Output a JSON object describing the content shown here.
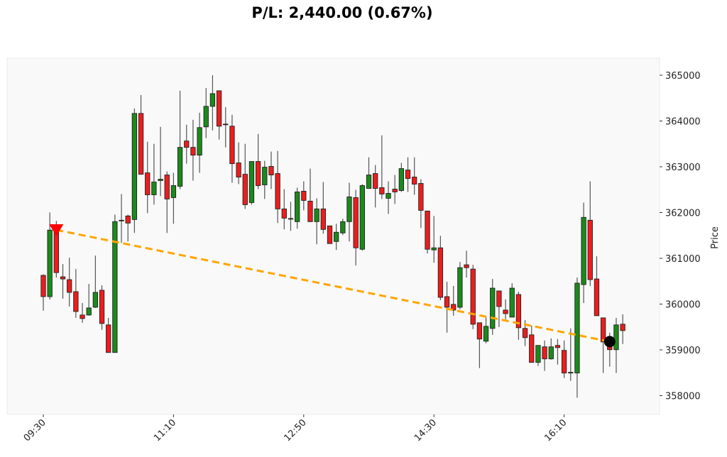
{
  "chart_data": {
    "type": "candlestick",
    "title": "P/L: 2,440.00 (0.67%)",
    "ylabel": "Price",
    "xlabel": "",
    "ylim": [
      357650,
      365400
    ],
    "y_axis_side": "right",
    "grid": false,
    "x_ticks": [
      "09:30",
      "11:10",
      "12:50",
      "14:30",
      "16:10"
    ],
    "y_ticks": [
      358000,
      359000,
      360000,
      361000,
      362000,
      363000,
      364000,
      365000
    ],
    "colors": {
      "up": "#1a8a1a",
      "down": "#ee1c1c",
      "background": "#f9f9f9",
      "trade_line": "#ffa500",
      "entry_marker": "#ff0000",
      "exit_marker": "#000000"
    },
    "candle_fields": [
      "time",
      "open",
      "high",
      "low",
      "close"
    ],
    "candles": [
      [
        "09:30",
        360627,
        360650,
        359854,
        360163
      ],
      [
        "09:35",
        360163,
        362002,
        360101,
        361616
      ],
      [
        "09:40",
        361647,
        361817,
        360580,
        360688
      ],
      [
        "09:45",
        360596,
        360874,
        360117,
        360549
      ],
      [
        "09:50",
        360534,
        361013,
        359947,
        360256
      ],
      [
        "09:55",
        360271,
        360766,
        359699,
        359838
      ],
      [
        "10:00",
        359761,
        360024,
        359591,
        359684
      ],
      [
        "10:05",
        359761,
        360441,
        359746,
        359916
      ],
      [
        "10:10",
        359931,
        361059,
        359916,
        360256
      ],
      [
        "10:15",
        360302,
        360410,
        359437,
        359576
      ],
      [
        "10:20",
        359545,
        359699,
        358942,
        358942
      ],
      [
        "10:25",
        358942,
        361956,
        358942,
        361801
      ],
      [
        "10:30",
        361832,
        362404,
        361337,
        361817
      ],
      [
        "10:35",
        361925,
        361956,
        361368,
        361770
      ],
      [
        "10:40",
        361847,
        364274,
        361554,
        364165
      ],
      [
        "10:45",
        364165,
        364567,
        362836,
        362836
      ],
      [
        "10:50",
        362867,
        363547,
        361987,
        362388
      ],
      [
        "10:55",
        362388,
        363501,
        362172,
        362666
      ],
      [
        "11:00",
        362698,
        363872,
        362357,
        362728
      ],
      [
        "11:05",
        362821,
        362898,
        361554,
        362296
      ],
      [
        "11:10",
        362327,
        362867,
        361755,
        362589
      ],
      [
        "11:15",
        362574,
        364660,
        362512,
        363424
      ],
      [
        "11:20",
        363563,
        363918,
        363068,
        363424
      ],
      [
        "11:25",
        363424,
        364026,
        362697,
        363254
      ],
      [
        "11:30",
        363254,
        364181,
        362867,
        363856
      ],
      [
        "11:35",
        363872,
        364722,
        363625,
        364320
      ],
      [
        "11:40",
        364320,
        365000,
        363795,
        364598
      ],
      [
        "11:45",
        364660,
        364660,
        363594,
        363887
      ],
      [
        "11:50",
        363933,
        364305,
        363424,
        363918
      ],
      [
        "11:55",
        363887,
        364135,
        362651,
        363068
      ],
      [
        "12:00",
        363084,
        363532,
        362620,
        362775
      ],
      [
        "12:05",
        362836,
        363501,
        362079,
        362172
      ],
      [
        "12:10",
        362218,
        363115,
        362172,
        363115
      ],
      [
        "12:15",
        363115,
        363717,
        362512,
        362589
      ],
      [
        "12:20",
        362605,
        363130,
        362296,
        362991
      ],
      [
        "12:25",
        363007,
        363331,
        362512,
        362821
      ],
      [
        "12:30",
        362852,
        363346,
        361770,
        362079
      ],
      [
        "12:35",
        362079,
        362512,
        361631,
        361878
      ],
      [
        "12:40",
        361870,
        362234,
        361600,
        361862
      ],
      [
        "12:45",
        361801,
        362543,
        361646,
        362450
      ],
      [
        "12:50",
        362466,
        362682,
        362048,
        362265
      ],
      [
        "12:55",
        362249,
        362960,
        361801,
        361801
      ],
      [
        "13:00",
        361801,
        362311,
        361306,
        362079
      ],
      [
        "13:05",
        362079,
        362667,
        361538,
        361631
      ],
      [
        "13:10",
        361708,
        361708,
        361322,
        361322
      ],
      [
        "13:15",
        361368,
        361755,
        361183,
        361569
      ],
      [
        "13:20",
        361554,
        361863,
        361508,
        361801
      ],
      [
        "13:25",
        361801,
        362651,
        361368,
        362342
      ],
      [
        "13:30",
        362326,
        362496,
        360843,
        361229
      ],
      [
        "13:35",
        361198,
        362620,
        361167,
        362589
      ],
      [
        "13:40",
        362527,
        363207,
        362527,
        362821
      ],
      [
        "13:45",
        362852,
        363037,
        362110,
        362527
      ],
      [
        "13:50",
        362543,
        363686,
        362296,
        362404
      ],
      [
        "13:55",
        362311,
        362682,
        361971,
        362419
      ],
      [
        "14:00",
        362512,
        362821,
        362187,
        362450
      ],
      [
        "14:05",
        362481,
        363084,
        362450,
        362960
      ],
      [
        "14:10",
        362929,
        363207,
        362450,
        362744
      ],
      [
        "14:15",
        362775,
        363207,
        362388,
        362620
      ],
      [
        "14:20",
        362636,
        362728,
        361662,
        362048
      ],
      [
        "14:25",
        362033,
        362033,
        361106,
        361198
      ],
      [
        "14:30",
        361183,
        361925,
        360905,
        361229
      ],
      [
        "14:35",
        361229,
        361492,
        360086,
        360147
      ],
      [
        "14:40",
        360163,
        360487,
        359375,
        359931
      ],
      [
        "14:45",
        359993,
        360395,
        359746,
        359869
      ],
      [
        "14:50",
        359931,
        360920,
        359885,
        360796
      ],
      [
        "14:55",
        360858,
        361167,
        360580,
        360796
      ],
      [
        "15:00",
        360765,
        360858,
        359452,
        359560
      ],
      [
        "15:05",
        359591,
        359591,
        358602,
        359236
      ],
      [
        "15:10",
        359189,
        359730,
        359143,
        359514
      ],
      [
        "15:15",
        359468,
        360549,
        359328,
        360348
      ],
      [
        "15:20",
        360287,
        360287,
        359498,
        359947
      ],
      [
        "15:25",
        359869,
        360101,
        359668,
        359792
      ],
      [
        "15:30",
        359715,
        360457,
        359715,
        360348
      ],
      [
        "15:35",
        360209,
        360271,
        359220,
        359483
      ],
      [
        "15:40",
        359468,
        359653,
        359081,
        359267
      ],
      [
        "15:45",
        359328,
        359529,
        358726,
        358726
      ],
      [
        "15:50",
        358726,
        359097,
        358648,
        359097
      ],
      [
        "15:55",
        359066,
        359205,
        358540,
        358803
      ],
      [
        "16:00",
        358803,
        359251,
        358787,
        359066
      ],
      [
        "16:05",
        359097,
        359236,
        358679,
        359050
      ],
      [
        "16:10",
        358988,
        359205,
        358385,
        358494
      ],
      [
        "16:15",
        358509,
        359468,
        358324,
        358509
      ],
      [
        "16:20",
        358494,
        360580,
        357953,
        360457
      ],
      [
        "16:25",
        360426,
        362218,
        360024,
        361894
      ],
      [
        "16:30",
        361832,
        362682,
        360395,
        360534
      ],
      [
        "16:35",
        360549,
        361044,
        359746,
        359746
      ],
      [
        "16:40",
        359699,
        359699,
        358494,
        359174
      ],
      [
        "16:45",
        359250,
        359375,
        358633,
        359004
      ],
      [
        "16:50",
        359004,
        359699,
        358494,
        359545
      ],
      [
        "16:55",
        359560,
        359777,
        359128,
        359421
      ]
    ],
    "trade": {
      "entry": {
        "time": "09:40",
        "price": 361620,
        "marker": "triangle-down"
      },
      "exit": {
        "time": "16:45",
        "price": 359180,
        "marker": "circle"
      }
    }
  }
}
